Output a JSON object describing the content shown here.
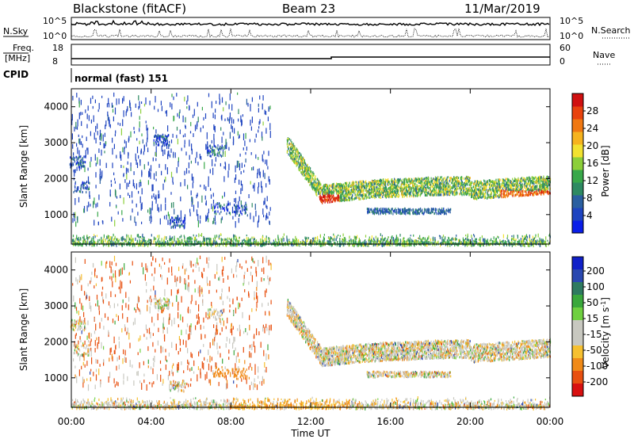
{
  "header": {
    "station": "Blackstone (fitACF)",
    "beam": "Beam 23",
    "date": "11/Mar/2019"
  },
  "noise_panel": {
    "left_label": "N.Sky",
    "left_ticks": [
      "10^5",
      "10^0"
    ],
    "right_ticks": [
      "10^5",
      "10^0"
    ],
    "right_label": "N.Search"
  },
  "freq_panel": {
    "label_line1": "Freq.",
    "label_line2": "[MHz]",
    "left_ticks": [
      "18",
      "8"
    ],
    "right_ticks": [
      "60",
      "0"
    ],
    "right_label": "Nave"
  },
  "cpid": {
    "label": "CPID",
    "value": "normal (fast) 151"
  },
  "chart_data": [
    {
      "type": "heatmap",
      "quantity": "Power",
      "ylabel": "Slant Range [km]",
      "xlabel": "Time UT",
      "x_ticks": [
        "00:00",
        "04:00",
        "08:00",
        "12:00",
        "16:00",
        "20:00",
        "00:00"
      ],
      "y_ticks": [
        1000,
        2000,
        3000,
        4000
      ],
      "ylim": [
        180,
        4500
      ],
      "xlim_hours": [
        0,
        24
      ],
      "colorbar": {
        "label": "Power [dB]",
        "ticks": [
          4,
          8,
          12,
          16,
          20,
          24,
          28
        ],
        "range": [
          0,
          32
        ],
        "colors": [
          "#0a1ee8",
          "#1e44c0",
          "#2a5fa0",
          "#2e8a62",
          "#39a84a",
          "#8ccf3a",
          "#f2e230",
          "#f6b31e",
          "#f07812",
          "#e8420e",
          "#d01010"
        ]
      }
    },
    {
      "type": "heatmap",
      "quantity": "Velocity",
      "ylabel": "Slant Range [km]",
      "xlabel": "Time UT",
      "x_ticks": [
        "00:00",
        "04:00",
        "08:00",
        "12:00",
        "16:00",
        "20:00",
        "00:00"
      ],
      "y_ticks": [
        1000,
        2000,
        3000,
        4000
      ],
      "ylim": [
        180,
        4500
      ],
      "xlim_hours": [
        0,
        24
      ],
      "colorbar": {
        "label": "Velocity [m s^-1]",
        "ticks": [
          200,
          100,
          50,
          15,
          -15,
          -50,
          -100,
          -200
        ],
        "colors": [
          "#1020c8",
          "#2a48b0",
          "#2e7a60",
          "#3aa83c",
          "#6fd040",
          "#c8c8c0",
          "#c8c8c0",
          "#f6c030",
          "#f08a18",
          "#e85010",
          "#d81010"
        ]
      }
    }
  ]
}
